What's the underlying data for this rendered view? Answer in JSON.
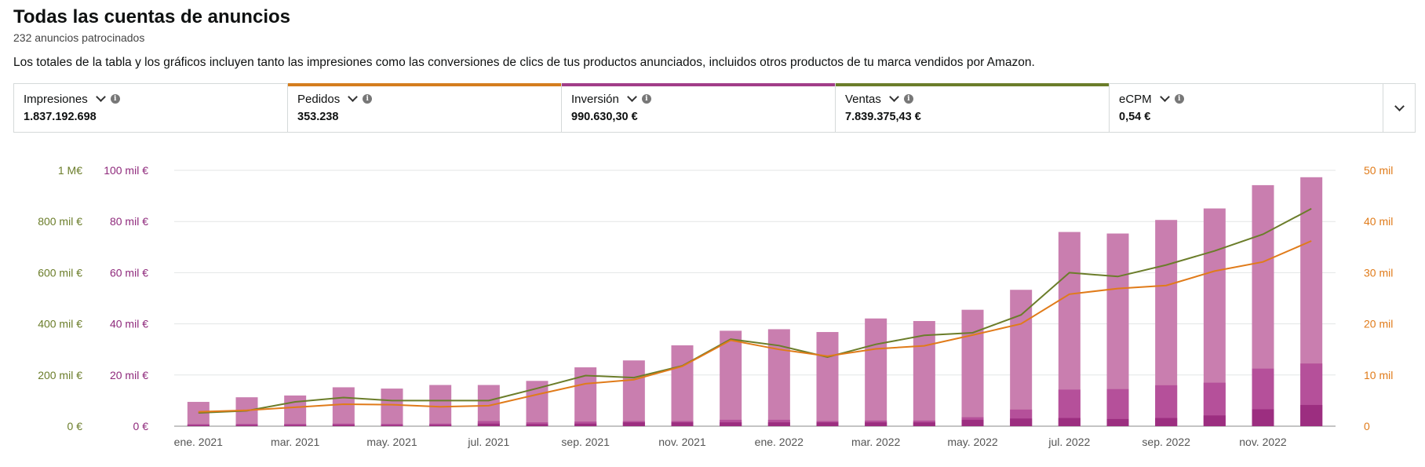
{
  "header": {
    "title": "Todas las cuentas de anuncios",
    "subtitle": "232 anuncios patrocinados",
    "info": "Los totales de la tabla y los gráficos incluyen tanto las impresiones como las conversiones de clics de tus productos anunciados, incluidos otros productos de tu marca vendidos por Amazon."
  },
  "metrics": [
    {
      "label": "Impresiones",
      "value": "1.837.192.698",
      "accent": ""
    },
    {
      "label": "Pedidos",
      "value": "353.238",
      "accent": "#d47d1e"
    },
    {
      "label": "Inversión",
      "value": "990.630,30 €",
      "accent": "#a13d88"
    },
    {
      "label": "Ventas",
      "value": "7.839.375,43 €",
      "accent": "#6b7d2a"
    },
    {
      "label": "eCPM",
      "value": "0,54 €",
      "accent": ""
    }
  ],
  "icons": {
    "info": "info-icon",
    "dropdown": "chevron-down-icon",
    "expand": "chevron-down-icon"
  },
  "colors": {
    "pedidos": "#e07b1a",
    "inversion": "#8f2a7c",
    "ventas": "#6b7d2a",
    "bar_light": "#c97eaf",
    "bar_mid": "#b5509a",
    "bar_dark": "#9c2e80",
    "grid": "#e3e6e6"
  },
  "chart_data": {
    "type": "bar",
    "categories": [
      "ene. 2021",
      "feb. 2021",
      "mar. 2021",
      "abr. 2021",
      "may. 2021",
      "jun. 2021",
      "jul. 2021",
      "ago. 2021",
      "sep. 2021",
      "oct. 2021",
      "nov. 2021",
      "dic. 2021",
      "ene. 2022",
      "feb. 2022",
      "mar. 2022",
      "abr. 2022",
      "may. 2022",
      "jun. 2022",
      "jul. 2022",
      "ago. 2022",
      "sep. 2022",
      "oct. 2022",
      "nov. 2022",
      "dic. 2022"
    ],
    "x_tick_labels": [
      "ene. 2021",
      "mar. 2021",
      "may. 2021",
      "jul. 2021",
      "sep. 2021",
      "nov. 2021",
      "ene. 2022",
      "mar. 2022",
      "may. 2022",
      "jul. 2022",
      "sep. 2022",
      "nov. 2022"
    ],
    "axes": {
      "ventas": {
        "ticks": [
          "0 €",
          "200 mil €",
          "400 mil €",
          "600 mil €",
          "800 mil €",
          "1 M€"
        ],
        "ylim": [
          0,
          1000000
        ]
      },
      "inversion": {
        "ticks": [
          "0 €",
          "20 mil €",
          "40 mil €",
          "60 mil €",
          "80 mil €",
          "100 mil €"
        ],
        "ylim": [
          0,
          100000
        ]
      },
      "pedidos": {
        "ticks": [
          "0",
          "10 mil",
          "20 mil",
          "30 mil",
          "40 mil",
          "50 mil"
        ],
        "ylim": [
          0,
          50000
        ]
      }
    },
    "bar_segments": {
      "total": [
        9500,
        11300,
        12000,
        15200,
        14700,
        16100,
        16100,
        17700,
        23000,
        25700,
        31600,
        37300,
        37900,
        36800,
        42100,
        41100,
        45500,
        53300,
        75900,
        75300,
        80600,
        85100,
        94200,
        97300
      ],
      "mid": [
        800,
        900,
        900,
        1000,
        900,
        1000,
        2000,
        1500,
        1800,
        2000,
        2000,
        2500,
        2500,
        2000,
        2200,
        2200,
        3500,
        6500,
        14300,
        14500,
        16000,
        17000,
        22500,
        24500
      ],
      "dark": [
        400,
        400,
        400,
        500,
        400,
        500,
        1000,
        800,
        1000,
        1500,
        1500,
        1500,
        1500,
        1500,
        1500,
        1500,
        2500,
        3000,
        3200,
        2800,
        3200,
        4200,
        6600,
        8300
      ]
    },
    "series": [
      {
        "values": [
          52000,
          60000,
          95000,
          112000,
          100000,
          100000,
          100000,
          148000,
          198000,
          190000,
          236000,
          340000,
          315000,
          270000,
          320000,
          355000,
          365000,
          435000,
          600000,
          585000,
          630000,
          685000,
          750000,
          850000
        ]
      },
      {
        "values": [
          2800,
          3100,
          3700,
          4300,
          4200,
          3800,
          4000,
          6200,
          8300,
          9100,
          11700,
          16800,
          15000,
          13700,
          15100,
          15700,
          17800,
          20000,
          25800,
          26900,
          27500,
          30300,
          32100,
          36200
        ]
      }
    ]
  }
}
